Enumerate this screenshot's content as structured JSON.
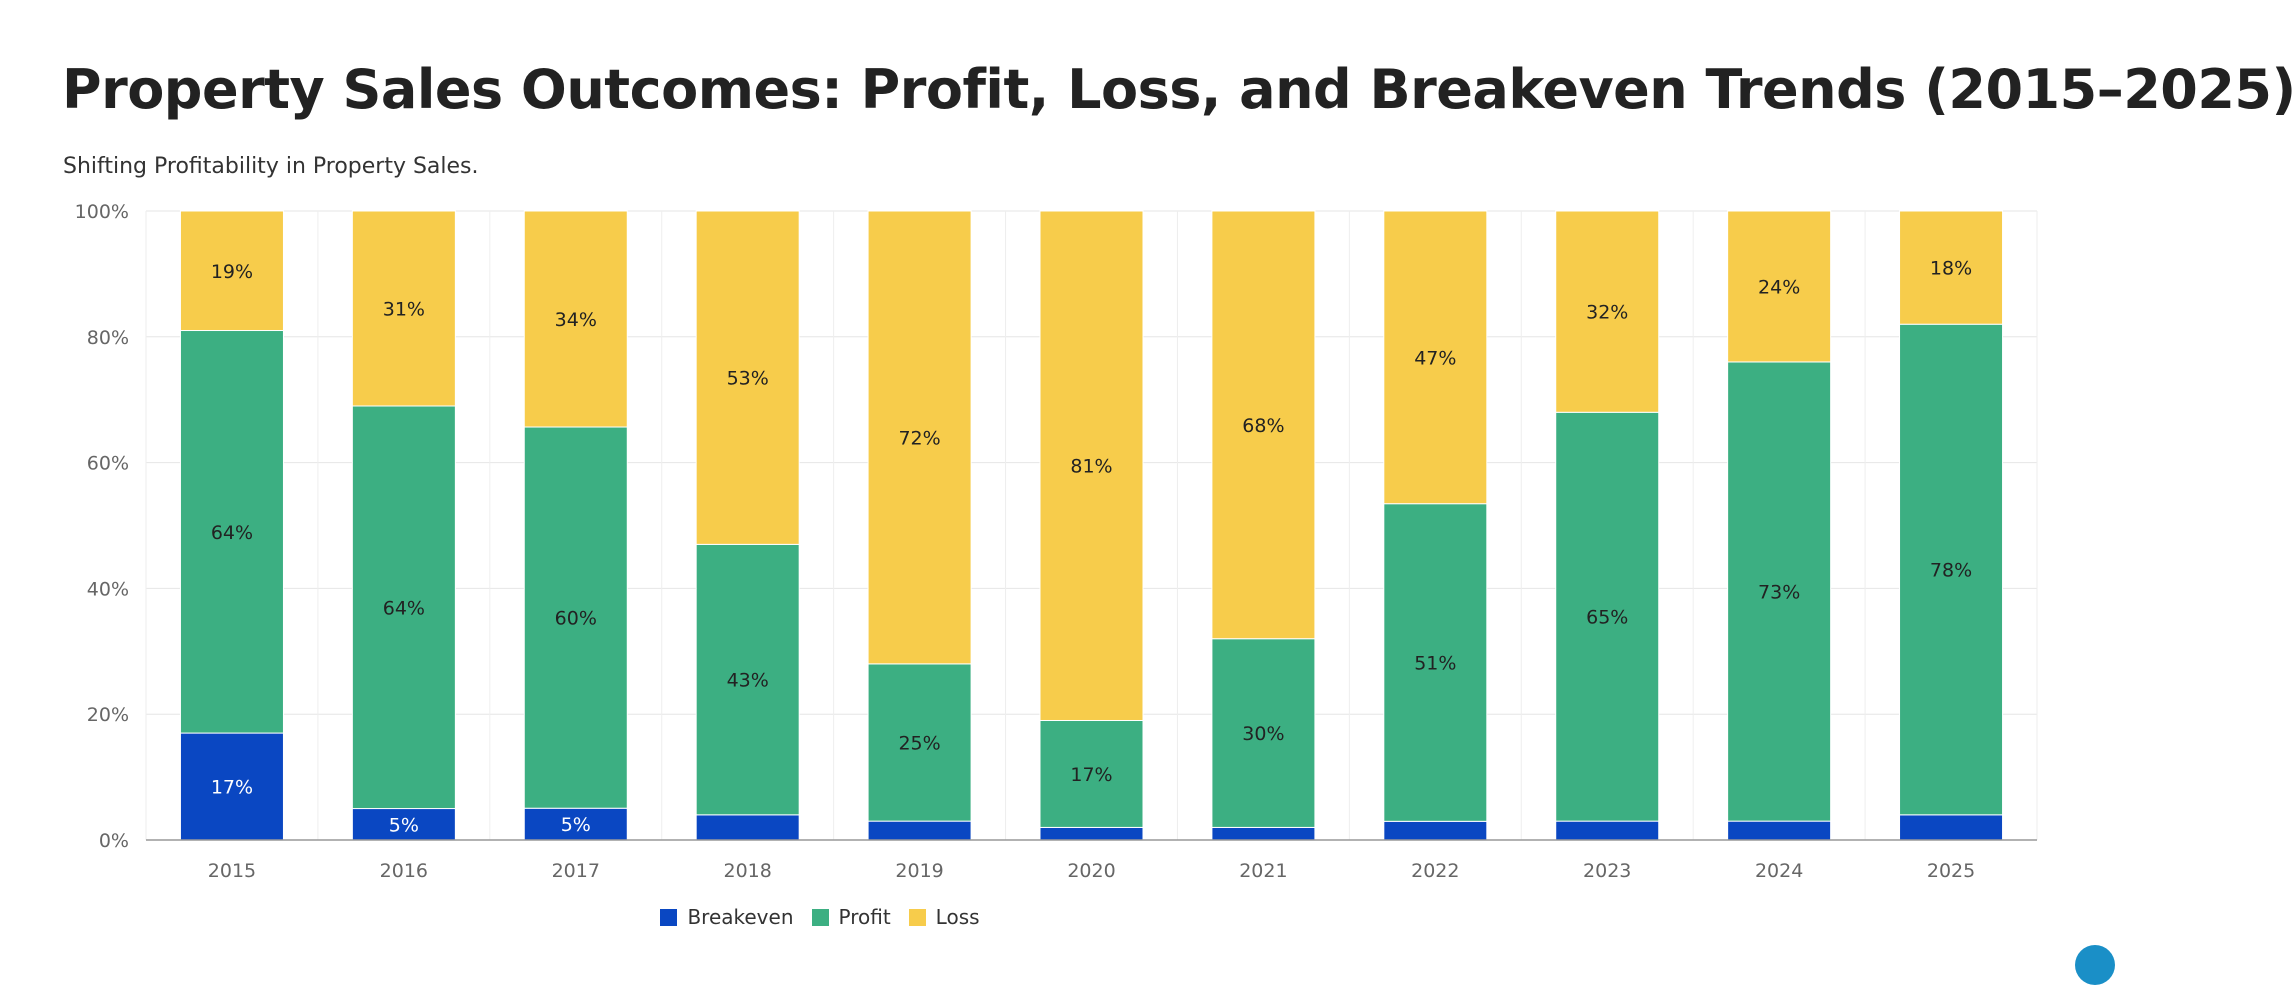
{
  "title": "Property Sales Outcomes: Profit, Loss, and Breakeven Trends (2015–2025)",
  "subtitle": "Shifting Profitability in Property Sales.",
  "colors": {
    "breakeven": "#0a47c2",
    "profit": "#3caf82",
    "loss": "#f7cc4b",
    "grid": "#e6e6e6",
    "axis_text": "#666666"
  },
  "chart_data": {
    "type": "bar",
    "stacked": true,
    "normalized": true,
    "categories": [
      "2015",
      "2016",
      "2017",
      "2018",
      "2019",
      "2020",
      "2021",
      "2022",
      "2023",
      "2024",
      "2025"
    ],
    "series": [
      {
        "name": "Breakeven",
        "values": [
          17,
          5,
          5,
          4,
          3,
          2,
          2,
          3,
          3,
          3,
          4
        ],
        "labels": [
          "17%",
          "5%",
          "5%",
          "",
          "",
          "",
          "",
          "",
          "",
          "",
          ""
        ]
      },
      {
        "name": "Profit",
        "values": [
          64,
          64,
          60,
          43,
          25,
          17,
          30,
          51,
          65,
          73,
          78
        ],
        "labels": [
          "64%",
          "64%",
          "60%",
          "43%",
          "25%",
          "17%",
          "30%",
          "51%",
          "65%",
          "73%",
          "78%"
        ]
      },
      {
        "name": "Loss",
        "values": [
          19,
          31,
          34,
          53,
          72,
          81,
          68,
          47,
          32,
          24,
          18
        ],
        "labels": [
          "19%",
          "31%",
          "34%",
          "53%",
          "72%",
          "81%",
          "68%",
          "47%",
          "32%",
          "24%",
          "18%"
        ]
      }
    ],
    "y_ticks": [
      "0%",
      "20%",
      "40%",
      "60%",
      "80%",
      "100%"
    ],
    "ylim": [
      0,
      100
    ],
    "grid": true,
    "legend": "bottom-center"
  },
  "legend": {
    "items": [
      {
        "label": "Breakeven",
        "color": "#0a47c2"
      },
      {
        "label": "Profit",
        "color": "#3caf82"
      },
      {
        "label": "Loss",
        "color": "#f7cc4b"
      }
    ]
  }
}
